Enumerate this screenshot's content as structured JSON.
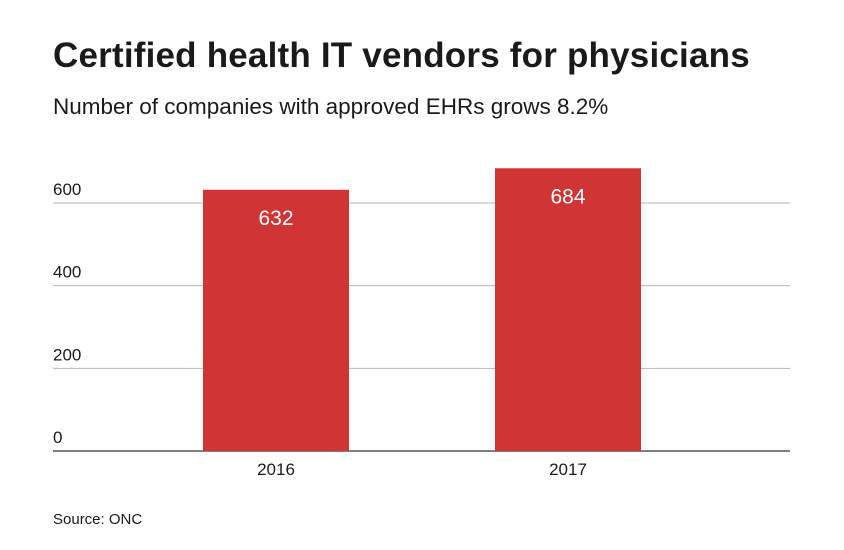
{
  "chart_data": {
    "type": "bar",
    "title": "Certified health IT vendors for physicians",
    "subtitle": "Number of companies with approved EHRs grows 8.2%",
    "categories": [
      "2016",
      "2017"
    ],
    "values": [
      632,
      684
    ],
    "data_labels": [
      "632",
      "684"
    ],
    "ylim": [
      0,
      600
    ],
    "yticks": [
      0,
      200,
      400,
      600
    ],
    "ytick_labels": [
      "0",
      "200",
      "400",
      "600"
    ],
    "grid": true,
    "legend": "none",
    "bar_color": "#d03434",
    "xlabel": "",
    "ylabel": ""
  },
  "source": "Source: ONC"
}
